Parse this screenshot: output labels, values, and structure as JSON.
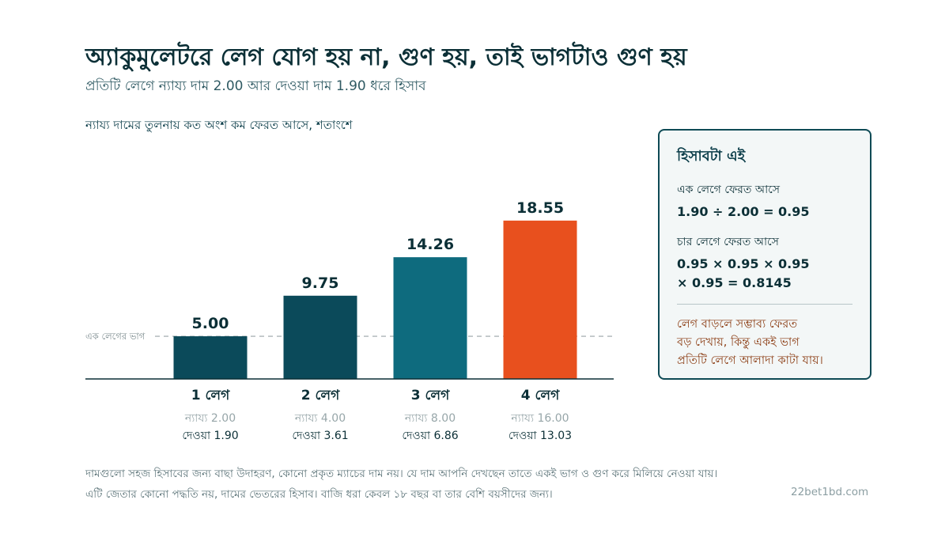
{
  "header": {
    "title": "অ্যাকুমুলেটরে লেগ যোগ হয় না, গুণ হয়, তাই ভাগটাও গুণ হয়",
    "subtitle": "প্রতিটি লেগে ন্যায্য দাম 2.00 আর দেওয়া দাম 1.90 ধরে হিসাব"
  },
  "chart_data": {
    "type": "bar",
    "title": "ন্যায্য দামের তুলনায় কত অংশ কম ফেরত আসে, শতাংশে",
    "categories": [
      "1 লেগ",
      "2 লেগ",
      "3 লেগ",
      "4 লেগ"
    ],
    "values": [
      5.0,
      9.75,
      14.26,
      18.55
    ],
    "value_labels": [
      "5.00",
      "9.75",
      "14.26",
      "18.55"
    ],
    "fair_labels": [
      "ন্যায্য 2.00",
      "ন্যায্য 4.00",
      "ন্যায্য 8.00",
      "ন্যায্য 16.00"
    ],
    "offered_labels": [
      "দেওয়া 1.90",
      "দেওয়া 3.61",
      "দেওয়া 6.86",
      "দেওয়া 13.03"
    ],
    "bar_colors": [
      "#0b4a5a",
      "#0b4a5a",
      "#0e6b7e",
      "#e8501e"
    ],
    "reference_line": {
      "value": 5.0,
      "label": "এক লেগের ভাগ"
    },
    "ylim": [
      0,
      21.5
    ],
    "xlabel": "",
    "ylabel": "",
    "grid": false
  },
  "explain_box": {
    "title": "হিসাবটা এই",
    "one_leg_label": "এক লেগে ফেরত আসে",
    "one_leg_formula": "1.90 ÷ 2.00 = 0.95",
    "four_leg_label": "চার লেগে ফেরত আসে",
    "four_leg_formula_line1": "0.95 × 0.95 × 0.95",
    "four_leg_formula_line2": "× 0.95 = 0.8145",
    "note_line1": "লেগ বাড়লে সম্ভাব্য ফেরত",
    "note_line2": "বড় দেখায়, কিন্তু একই ভাগ",
    "note_line3": "প্রতিটি লেগে আলাদা কাটা যায়।"
  },
  "footer": {
    "line1": "দামগুলো সহজ হিসাবের জন্য বাছা উদাহরণ, কোনো প্রকৃত ম্যাচের দাম নয়। যে দাম আপনি দেখছেন তাতে একই ভাগ ও গুণ করে মিলিয়ে নেওয়া যায়।",
    "line2": "এটি জেতার কোনো পদ্ধতি নয়, দামের ভেতরের হিসাব। বাজি ধরা কেবল ১৮ বছর বা তার বেশি বয়সীদের জন্য।",
    "domain": "22bet1bd.com"
  }
}
